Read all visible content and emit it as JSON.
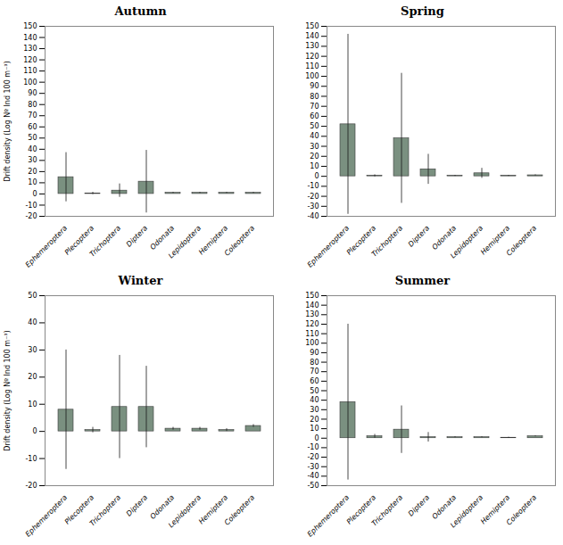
{
  "chart_data": [
    {
      "type": "bar",
      "title": "Autumn",
      "categories": [
        "Ephemeroptera",
        "Plecoptera",
        "Trichoptera",
        "Diptera",
        "Odonata",
        "Lepidoptera",
        "Hemiptera",
        "Coleoptera"
      ],
      "values": [
        15,
        0.5,
        3,
        11,
        1,
        1,
        1,
        1
      ],
      "errors": [
        22,
        1,
        6,
        28,
        0.5,
        0.5,
        0.5,
        0.5
      ],
      "color": "#7a9080",
      "ylabel": "Drift density (Log Nº Ind 100 m⁻³)",
      "ylim": [
        -20,
        150
      ],
      "yticks": [
        -20,
        -10,
        0,
        10,
        20,
        30,
        40,
        50,
        60,
        70,
        80,
        90,
        100,
        110,
        120,
        130,
        140,
        150
      ]
    },
    {
      "type": "bar",
      "title": "Spring",
      "categories": [
        "Ephemeroptera",
        "Plecoptera",
        "Trichoptera",
        "Diptera",
        "Odonata",
        "Lepidoptera",
        "Hemiptera",
        "Coleoptera"
      ],
      "values": [
        52,
        0.5,
        38,
        7,
        0.5,
        3,
        0.5,
        1
      ],
      "errors": [
        90,
        1,
        65,
        15,
        0.5,
        5,
        0.5,
        0.5
      ],
      "color": "#7a9080",
      "ylim": [
        -40,
        150
      ],
      "yticks": [
        -40,
        -30,
        -20,
        -10,
        0,
        10,
        20,
        30,
        40,
        50,
        60,
        70,
        80,
        90,
        100,
        110,
        120,
        130,
        140,
        150
      ]
    },
    {
      "type": "bar",
      "title": "Winter",
      "categories": [
        "Ephemeroptera",
        "Plecoptera",
        "Trichoptera",
        "Diptera",
        "Odonata",
        "Lepidoptera",
        "Hemiptera",
        "Coleoptera"
      ],
      "values": [
        8,
        0.5,
        9,
        9,
        1,
        1,
        0.5,
        2
      ],
      "errors": [
        22,
        1,
        19,
        15,
        0.5,
        0.5,
        0.5,
        0.5
      ],
      "color": "#7a9080",
      "ylabel": "Drift density (Log Nº Ind 100 m⁻³)",
      "ylim": [
        -20,
        50
      ],
      "yticks": [
        -20,
        -10,
        0,
        10,
        20,
        30,
        40,
        50
      ]
    },
    {
      "type": "bar",
      "title": "Summer",
      "categories": [
        "Ephemeroptera",
        "Plecoptera",
        "Trichoptera",
        "Diptera",
        "Odonata",
        "Lepidoptera",
        "Hemiptera",
        "Coleoptera"
      ],
      "values": [
        38,
        2,
        9,
        1,
        1,
        1,
        0.5,
        2
      ],
      "errors": [
        82,
        2,
        25,
        5,
        0.5,
        0.5,
        0.5,
        0.5
      ],
      "color": "#7a9080",
      "ylim": [
        -50,
        150
      ],
      "yticks": [
        -50,
        -40,
        -30,
        -20,
        -10,
        0,
        10,
        20,
        30,
        40,
        50,
        60,
        70,
        80,
        90,
        100,
        110,
        120,
        130,
        140,
        150
      ]
    }
  ]
}
